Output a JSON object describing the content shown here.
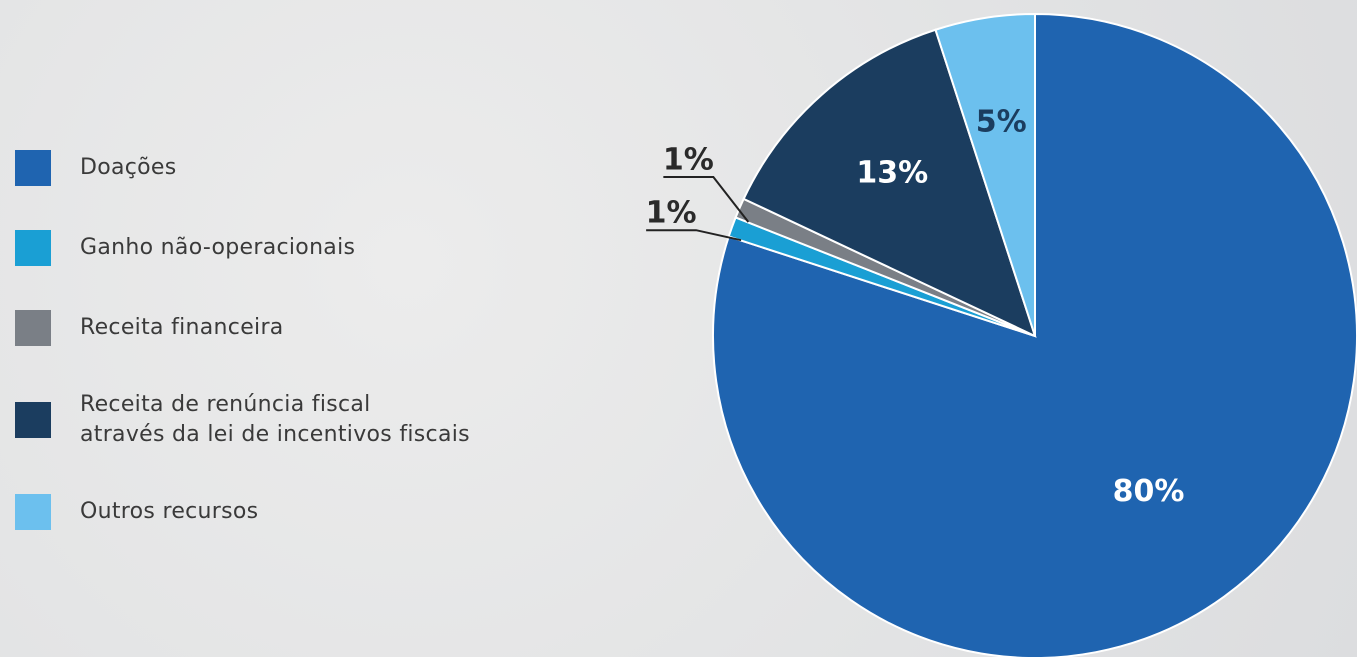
{
  "chart_data": {
    "type": "pie",
    "categories": [
      "Doações",
      "Ganho não-operacionais",
      "Receita financeira",
      "Receita de renúncia fiscal\natravés da lei de incentivos fiscais",
      "Outros recursos"
    ],
    "values": [
      80,
      1,
      1,
      13,
      5
    ],
    "value_labels": [
      "80%",
      "1%",
      "1%",
      "13%",
      "5%"
    ],
    "colors": [
      "#1f64b0",
      "#1a9fd4",
      "#7a7f86",
      "#1b3d5f",
      "#6cc0ee"
    ],
    "legend": "left"
  }
}
